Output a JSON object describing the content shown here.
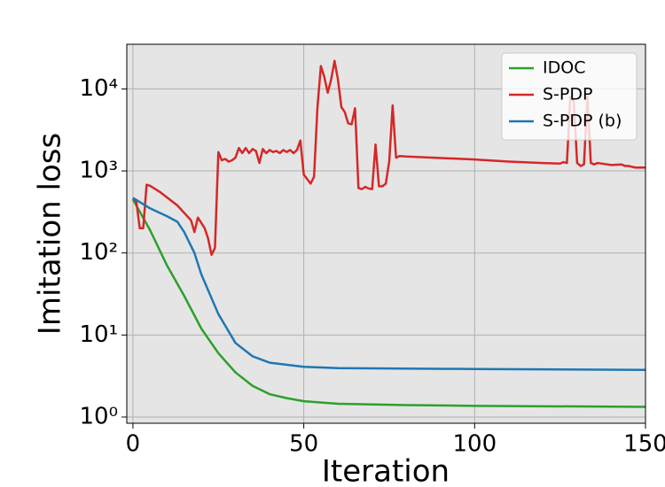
{
  "chart_data": {
    "type": "line",
    "xlabel": "Iteration",
    "ylabel": "Imitation loss",
    "xlim": [
      -1.8,
      150
    ],
    "xticks": [
      0,
      50,
      100,
      150
    ],
    "ylim": [
      0.84,
      35000
    ],
    "ylog": true,
    "yticks": [
      {
        "value": 1,
        "label": "10⁰"
      },
      {
        "value": 10,
        "label": "10¹"
      },
      {
        "value": 100,
        "label": "10²"
      },
      {
        "value": 1000,
        "label": "10³"
      },
      {
        "value": 10000,
        "label": "10⁴"
      }
    ],
    "grid": true,
    "legend": "upper right",
    "series": [
      {
        "name": "IDOC",
        "color": "#2ca02c",
        "x": [
          0,
          5,
          10,
          15,
          20,
          25,
          30,
          35,
          40,
          45,
          50,
          60,
          80,
          100,
          150
        ],
        "values": [
          450,
          190,
          70,
          30,
          12,
          6,
          3.5,
          2.4,
          1.9,
          1.7,
          1.56,
          1.45,
          1.4,
          1.37,
          1.33
        ]
      },
      {
        "name": "S-PDP",
        "color": "#d62728",
        "x": [
          0,
          1,
          2,
          3,
          4,
          5,
          8,
          13,
          17,
          18,
          19,
          21,
          22,
          23,
          24,
          25,
          26,
          27,
          28,
          29,
          30,
          31,
          32,
          33,
          34,
          35,
          36,
          37,
          38,
          39,
          40,
          41,
          42,
          43,
          44,
          45,
          46,
          47,
          48,
          49,
          50,
          52,
          53,
          54,
          55,
          56,
          57,
          58,
          59,
          60,
          61,
          62,
          63,
          64,
          65,
          66,
          67,
          68,
          69,
          70,
          71,
          72,
          73,
          74,
          75,
          76,
          77,
          78,
          80,
          100,
          110,
          120,
          125,
          126,
          127,
          128,
          129,
          130,
          131,
          132,
          133,
          134,
          135,
          136,
          140,
          143,
          144,
          145,
          147,
          150
        ],
        "values": [
          460,
          420,
          200,
          200,
          680,
          660,
          550,
          380,
          250,
          180,
          270,
          200,
          150,
          95,
          115,
          1700,
          1350,
          1400,
          1300,
          1350,
          1450,
          1900,
          1650,
          1900,
          1650,
          1850,
          1750,
          1250,
          1850,
          1650,
          1800,
          1700,
          1750,
          1650,
          1800,
          1700,
          1800,
          1650,
          1800,
          2350,
          900,
          700,
          850,
          6000,
          19000,
          14000,
          9000,
          13000,
          22000,
          13000,
          6000,
          5200,
          3800,
          3700,
          5800,
          620,
          600,
          640,
          610,
          600,
          2100,
          650,
          650,
          700,
          1300,
          6300,
          1450,
          1520,
          1500,
          1380,
          1300,
          1250,
          1230,
          1280,
          1250,
          8000,
          7000,
          1250,
          1150,
          1200,
          8000,
          1250,
          1200,
          1250,
          1180,
          1200,
          1150,
          1150,
          1100,
          1100
        ]
      },
      {
        "name": "S-PDP (b)",
        "color": "#1f77b4",
        "x": [
          0,
          5,
          10,
          13,
          15,
          18,
          20,
          25,
          30,
          35,
          40,
          50,
          60,
          100,
          150
        ],
        "values": [
          470,
          350,
          280,
          240,
          180,
          100,
          55,
          18,
          8,
          5.5,
          4.6,
          4.1,
          3.95,
          3.85,
          3.75
        ]
      }
    ]
  }
}
